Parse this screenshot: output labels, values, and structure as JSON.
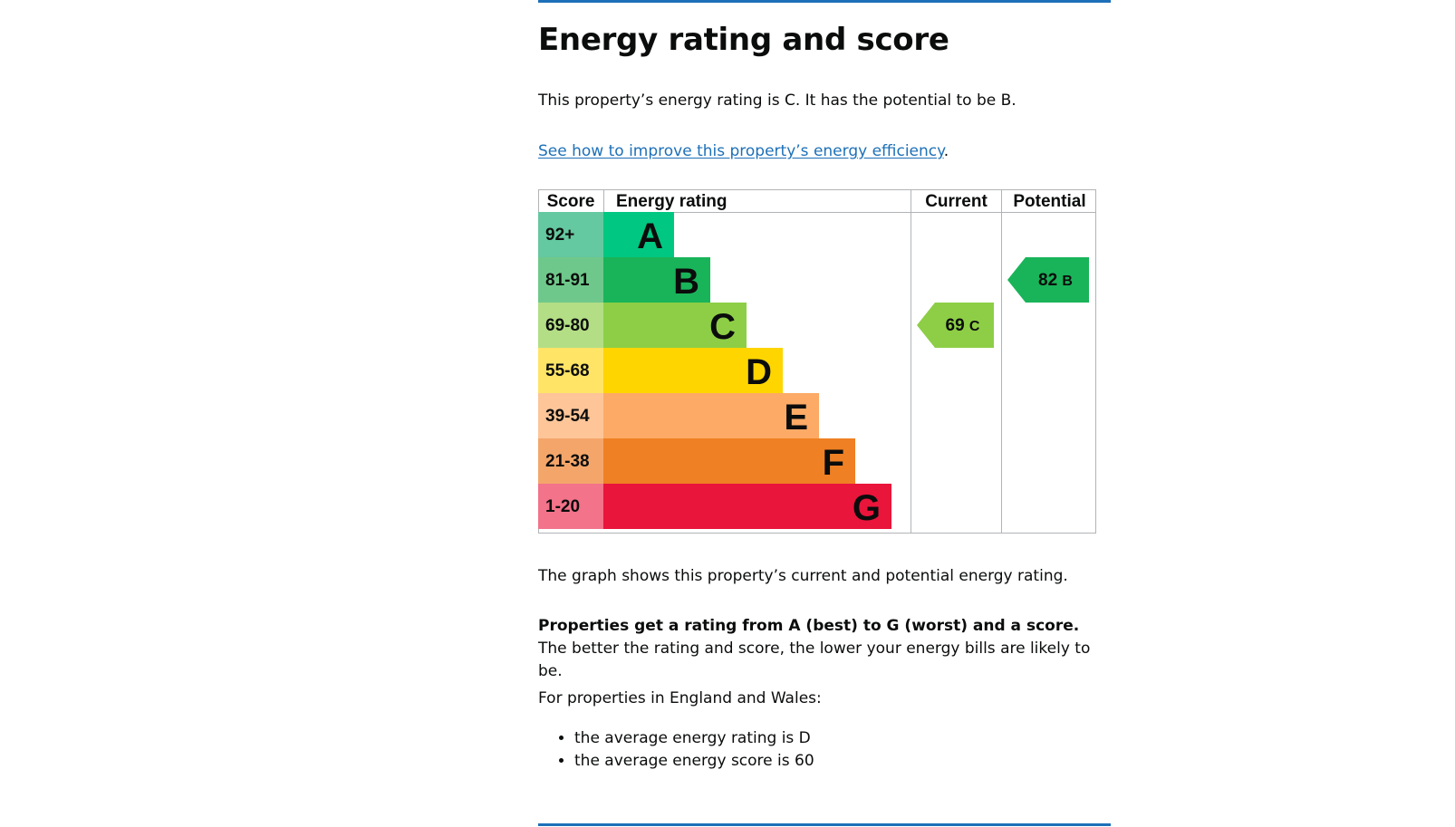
{
  "section": {
    "title": "Energy rating and score",
    "intro": "This property’s energy rating is C. It has the potential to be B.",
    "improve_link": "See how to improve this property’s energy efficiency",
    "improve_suffix": ".",
    "graph_note": "The graph shows this property’s current and potential energy rating.",
    "props_bold": "Properties get a rating from A (best) to G (worst) and a score.",
    "props_rest": " The better the rating and score, the lower your energy bills are likely to be.",
    "ew_intro": "For properties in England and Wales:",
    "averages": [
      "the average energy rating is D",
      "the average energy score is 60"
    ]
  },
  "chart_data": {
    "type": "bar",
    "headers": {
      "score": "Score",
      "rating": "Energy rating",
      "current": "Current",
      "potential": "Potential"
    },
    "bands": [
      {
        "score_range": "92+",
        "letter": "A",
        "color": "#00c781",
        "score_color": "#64c8a0"
      },
      {
        "score_range": "81-91",
        "letter": "B",
        "color": "#19b459",
        "score_color": "#6fc88b"
      },
      {
        "score_range": "69-80",
        "letter": "C",
        "color": "#8dce46",
        "score_color": "#b3de85"
      },
      {
        "score_range": "55-68",
        "letter": "D",
        "color": "#ffd500",
        "score_color": "#ffe466"
      },
      {
        "score_range": "39-54",
        "letter": "E",
        "color": "#fcaa65",
        "score_color": "#fdc598"
      },
      {
        "score_range": "21-38",
        "letter": "F",
        "color": "#ef8023",
        "score_color": "#f4a66a"
      },
      {
        "score_range": "1-20",
        "letter": "G",
        "color": "#e9153b",
        "score_color": "#f2738a"
      }
    ],
    "current": {
      "score": 69,
      "letter": "C",
      "color": "#8dce46"
    },
    "potential": {
      "score": 82,
      "letter": "B",
      "color": "#19b459"
    }
  }
}
